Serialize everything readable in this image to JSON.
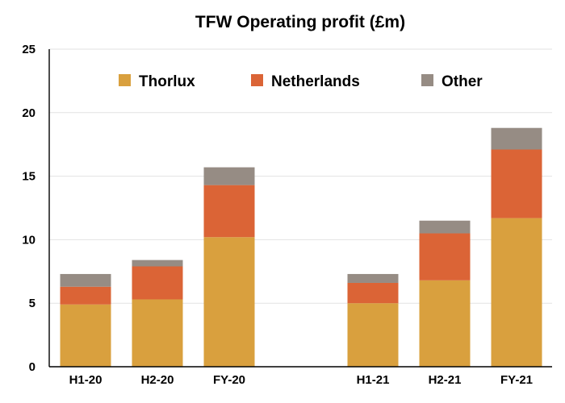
{
  "chart_data": {
    "type": "bar",
    "stacked": true,
    "title": "TFW Operating profit (£m)",
    "xlabel": "",
    "ylabel": "",
    "categories": [
      "H1-20",
      "H2-20",
      "FY-20",
      "H1-21",
      "H2-21",
      "FY-21"
    ],
    "category_groups": [
      [
        "H1-20",
        "H2-20",
        "FY-20"
      ],
      [
        "H1-21",
        "H2-21",
        "FY-21"
      ]
    ],
    "series": [
      {
        "name": "Thorlux",
        "color": "#D9A03E",
        "values": [
          4.9,
          5.3,
          10.2,
          5.0,
          6.8,
          11.7
        ]
      },
      {
        "name": "Netherlands",
        "color": "#DB6436",
        "values": [
          1.4,
          2.6,
          4.1,
          1.6,
          3.7,
          5.4
        ]
      },
      {
        "name": "Other",
        "color": "#968C84",
        "values": [
          1.0,
          0.5,
          1.4,
          0.7,
          1.0,
          1.7
        ]
      }
    ],
    "ylim": [
      0,
      25
    ],
    "yticks": [
      "0",
      "5",
      "10",
      "15",
      "20",
      "25"
    ],
    "grid": true,
    "legend": "top"
  }
}
